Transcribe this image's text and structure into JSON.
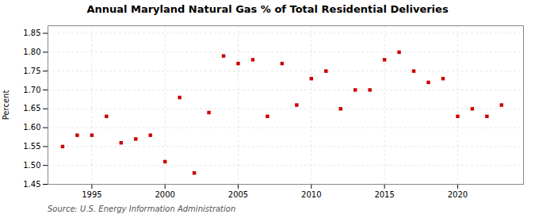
{
  "chart_data": {
    "type": "scatter",
    "title": "Annual Maryland Natural Gas % of Total Residential Deliveries",
    "ylabel": "Percent",
    "annotation": "Source: U.S. Energy Information Administration",
    "x": [
      1993,
      1994,
      1995,
      1996,
      1997,
      1998,
      1999,
      2000,
      2001,
      2002,
      2003,
      2004,
      2005,
      2006,
      2007,
      2008,
      2009,
      2010,
      2011,
      2012,
      2013,
      2014,
      2015,
      2016,
      2017,
      2018,
      2019,
      2020,
      2021,
      2022,
      2023
    ],
    "values": [
      1.55,
      1.58,
      1.58,
      1.63,
      1.56,
      1.57,
      1.58,
      1.51,
      1.68,
      1.48,
      1.64,
      1.79,
      1.77,
      1.78,
      1.63,
      1.77,
      1.66,
      1.73,
      1.75,
      1.65,
      1.7,
      1.7,
      1.78,
      1.8,
      1.75,
      1.72,
      1.73,
      1.63,
      1.65,
      1.63,
      1.66
    ],
    "color": "#cc0000",
    "marker": "square",
    "xlim": [
      1992.0,
      2024.5
    ],
    "xticks": [
      1995,
      2000,
      2005,
      2010,
      2015,
      2020
    ],
    "ylim": [
      1.45,
      1.87
    ],
    "yticks": [
      1.45,
      {
        "value": 1.5,
        "label": "1.50"
      },
      1.55,
      {
        "value": 1.6,
        "label": "1.60"
      },
      1.65,
      {
        "value": 1.7,
        "label": "1.70"
      },
      1.75,
      {
        "value": 1.8,
        "label": "1.80"
      },
      1.85
    ],
    "grid": true
  }
}
